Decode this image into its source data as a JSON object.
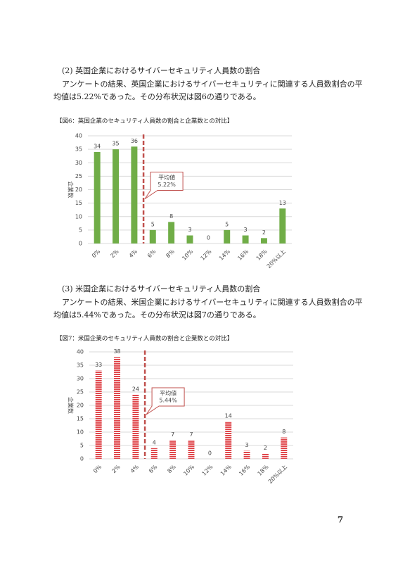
{
  "sections": [
    {
      "heading": "(2) 英国企業におけるサイバーセキュリティ人員数の割合",
      "lines": [
        "アンケートの結果、英国企業におけるサイバーセキュリティに関連する人員数割合の平",
        "均値は5.22%であった。その分布状況は図6の通りである。"
      ]
    },
    {
      "heading": "(3) 米国企業におけるサイバーセキュリティ人員数の割合",
      "lines": [
        "アンケートの結果、米国企業におけるサイバーセキュリティに関連する人員数割合の平",
        "均値は5.44%であった。その分布状況は図7の通りである。"
      ]
    }
  ],
  "chart_data": [
    {
      "type": "bar",
      "title": "【図6：英国企業のセキュリティ人員数の割合と企業数との対比】",
      "y_label": "企業数",
      "categories": [
        "0%",
        "2%",
        "4%",
        "6%",
        "8%",
        "10%",
        "12%",
        "14%",
        "16%",
        "18%",
        "20%以上"
      ],
      "values": [
        34,
        35,
        36,
        5,
        8,
        3,
        0,
        5,
        3,
        2,
        13
      ],
      "color": "#70ad47",
      "fill_style": "solid",
      "ylim": [
        0,
        40
      ],
      "yticks": [
        0,
        5,
        10,
        15,
        20,
        25,
        30,
        35,
        40
      ],
      "grid": true,
      "annotations": [
        "平均値",
        "5.22%"
      ]
    },
    {
      "type": "bar",
      "title": "【図7：米国企業のセキュリティ人員数の割合と企業数との対比】",
      "y_label": "企業数",
      "categories": [
        "0%",
        "2%",
        "4%",
        "6%",
        "8%",
        "10%",
        "12%",
        "14%",
        "16%",
        "18%",
        "20%以上"
      ],
      "values": [
        33,
        38,
        24,
        4,
        7,
        7,
        0,
        14,
        3,
        2,
        8
      ],
      "color": "#e0474c",
      "fill_style": "stripes",
      "ylim": [
        0,
        40
      ],
      "yticks": [
        0,
        5,
        10,
        15,
        20,
        25,
        30,
        35,
        40
      ],
      "grid": true,
      "annotations": [
        "平均値",
        "5.44%"
      ]
    }
  ],
  "page_number": "7"
}
